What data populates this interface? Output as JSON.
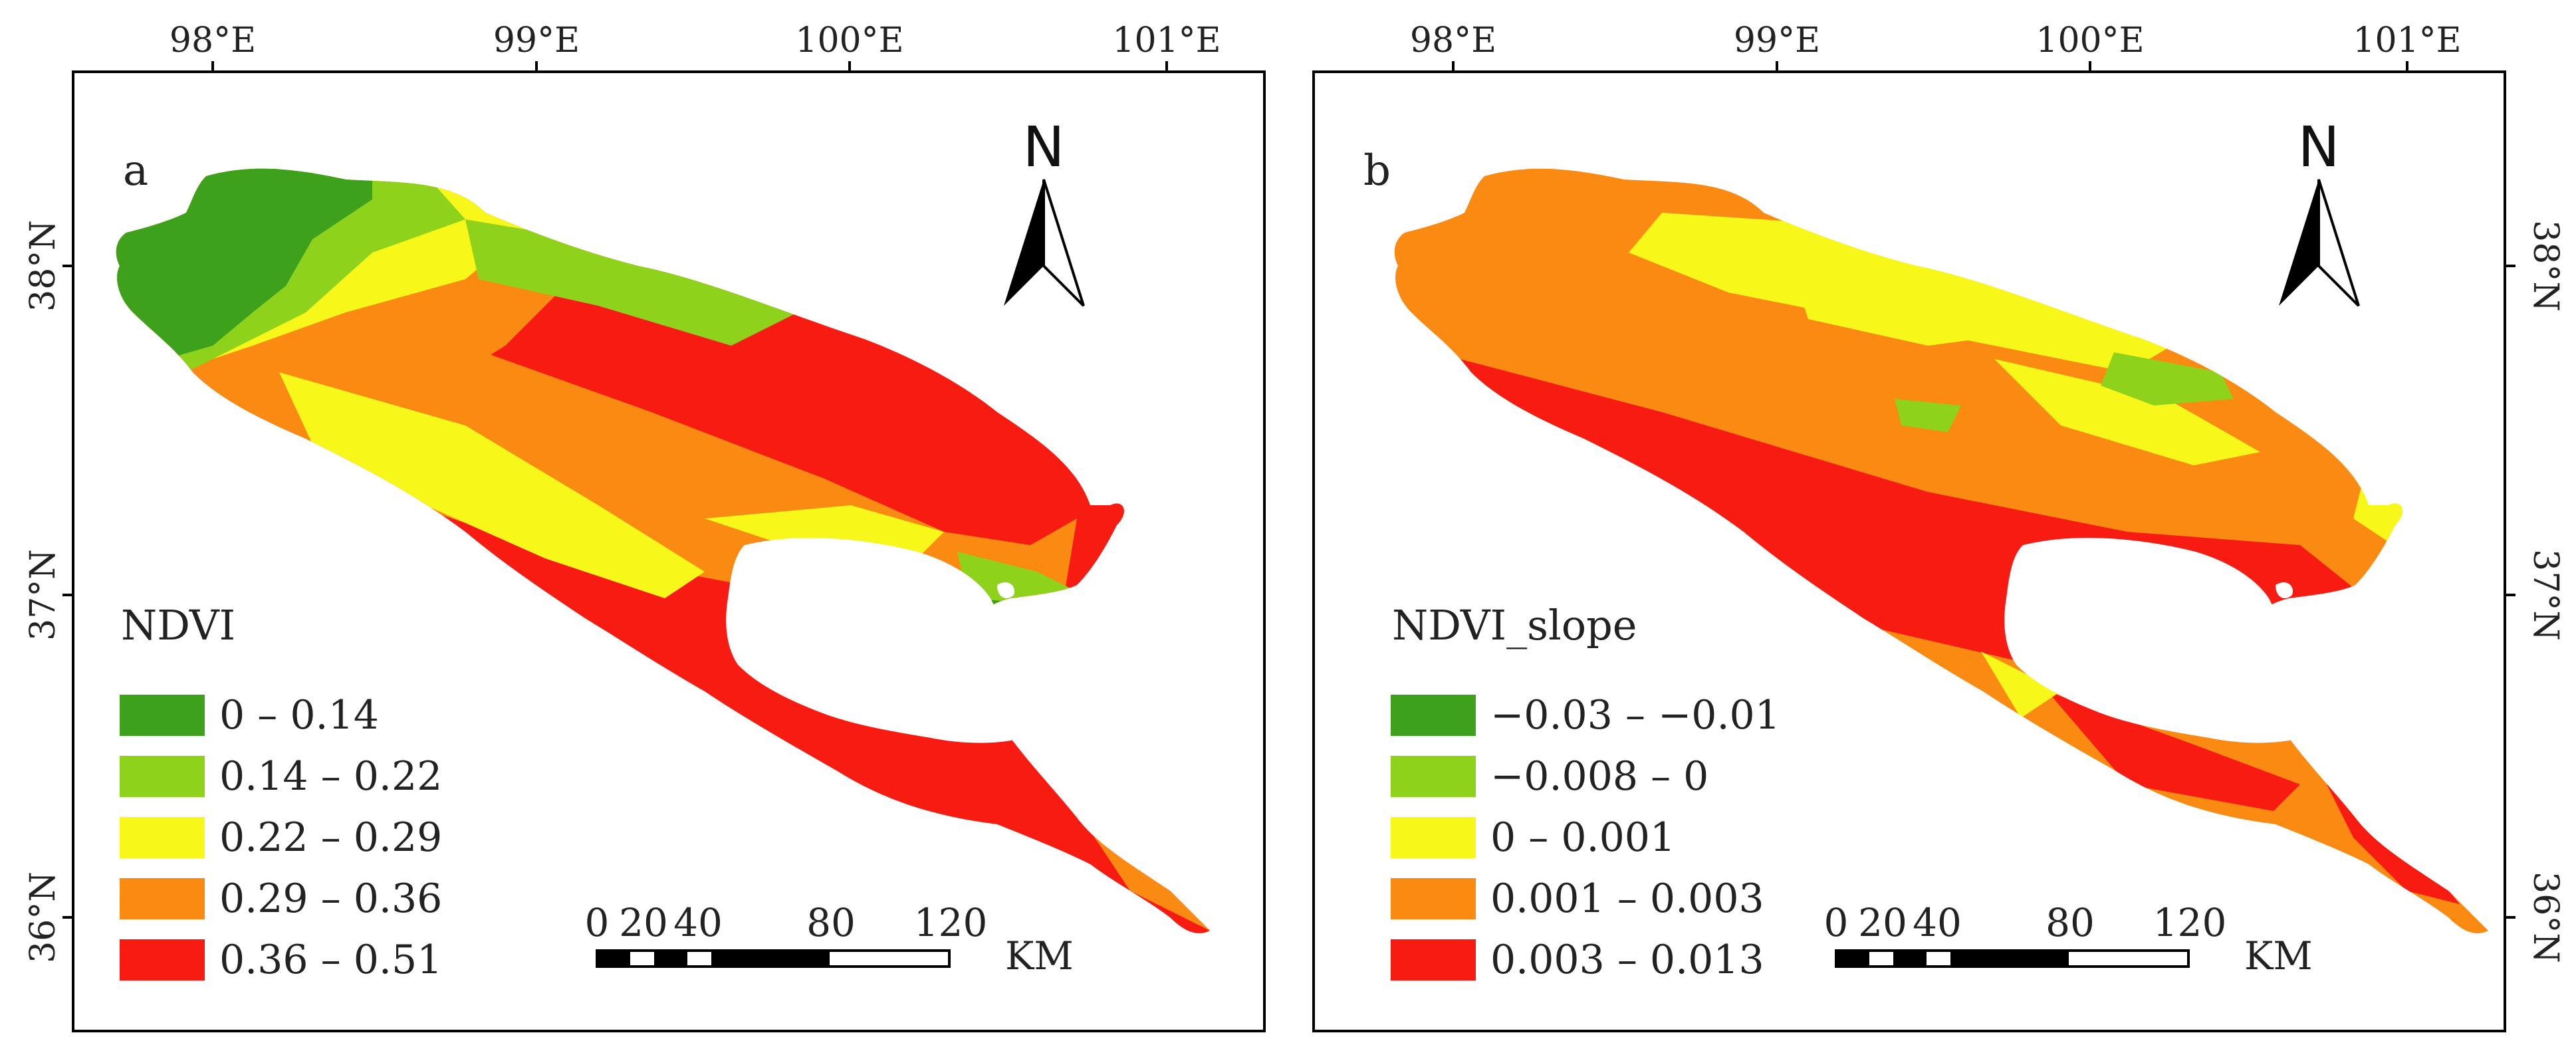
{
  "figure": {
    "longitude_labels": [
      "98°E",
      "99°E",
      "100°E",
      "101°E"
    ],
    "latitude_labels": [
      "38°N",
      "37°N",
      "36°N"
    ],
    "north_arrow_label": "N",
    "scale_bar": {
      "ticks": [
        "0",
        "20",
        "40",
        "80",
        "120"
      ],
      "unit": "KM"
    },
    "panels": [
      {
        "letter": "a",
        "legend_title": "NDVI",
        "legend": [
          {
            "label": "0 – 0.14",
            "color": "#3ea11c"
          },
          {
            "label": "0.14 – 0.22",
            "color": "#8fd21b"
          },
          {
            "label": "0.22 – 0.29",
            "color": "#f7f71a"
          },
          {
            "label": "0.29 – 0.36",
            "color": "#fb8a12"
          },
          {
            "label": "0.36 – 0.51",
            "color": "#f71b12"
          }
        ]
      },
      {
        "letter": "b",
        "legend_title": "NDVI_slope",
        "legend": [
          {
            "label": "−0.03 – −0.01",
            "color": "#3ea11c"
          },
          {
            "label": "−0.008 – 0",
            "color": "#8fd21b"
          },
          {
            "label": "0 – 0.001",
            "color": "#f7f71a"
          },
          {
            "label": "0.001 – 0.003",
            "color": "#fb8a12"
          },
          {
            "label": "0.003 – 0.013",
            "color": "#f71b12"
          }
        ]
      }
    ]
  }
}
